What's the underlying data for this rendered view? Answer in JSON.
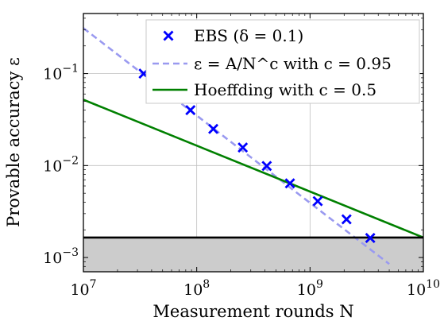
{
  "chart_data": {
    "type": "scatter",
    "xlabel": "Measurement rounds N",
    "ylabel": "Provable accuracy ε",
    "x_scale": "log",
    "y_scale": "log",
    "xlim": [
      10000000,
      10000000000
    ],
    "ylim": [
      0.0007,
      0.45
    ],
    "x_ticks": [
      {
        "value": 10000000,
        "base": "10",
        "exp": "7"
      },
      {
        "value": 100000000,
        "base": "10",
        "exp": "8"
      },
      {
        "value": 1000000000,
        "base": "10",
        "exp": "9"
      },
      {
        "value": 10000000000,
        "base": "10",
        "exp": "10"
      }
    ],
    "y_ticks": [
      {
        "value": 0.001,
        "base": "10",
        "exp": "−3"
      },
      {
        "value": 0.01,
        "base": "10",
        "exp": "−2"
      },
      {
        "value": 0.1,
        "base": "10",
        "exp": "−1"
      }
    ],
    "grid": true,
    "legend_position": "top-right",
    "legend": [
      {
        "label": "EBS (δ = 0.1)",
        "marker": "x",
        "color": "#0000ff"
      },
      {
        "label": "ε = A/N^c with c = 0.95",
        "style": "dashed",
        "color": "#9a9af0"
      },
      {
        "label": "Hoeffding with c = 0.5",
        "style": "solid",
        "color": "#008000"
      }
    ],
    "series": [
      {
        "name": "EBS (δ = 0.1)",
        "marker": "x",
        "color": "#0000ff",
        "x": [
          34000000,
          55000000,
          88000000,
          140000000,
          255000000,
          415000000,
          665000000,
          1170000000,
          2100000000,
          3400000000
        ],
        "y": [
          0.1,
          0.065,
          0.04,
          0.025,
          0.0157,
          0.0099,
          0.0064,
          0.0041,
          0.0026,
          0.00163
        ]
      },
      {
        "name": "ε = A/N^c with c = 0.95",
        "style": "dashed",
        "color": "#9a9af0",
        "x": [
          10000000,
          5000000000
        ],
        "y": [
          0.312,
          0.00085
        ]
      },
      {
        "name": "Hoeffding with c = 0.5",
        "style": "solid",
        "color": "#008000",
        "x": [
          10000000,
          10000000000
        ],
        "y": [
          0.052,
          0.00165
        ]
      }
    ],
    "hline": {
      "y": 0.00165,
      "color": "#000000"
    },
    "shaded_region": {
      "y_from": 0.0007,
      "y_to": 0.00165,
      "color": "#cccccc"
    }
  }
}
